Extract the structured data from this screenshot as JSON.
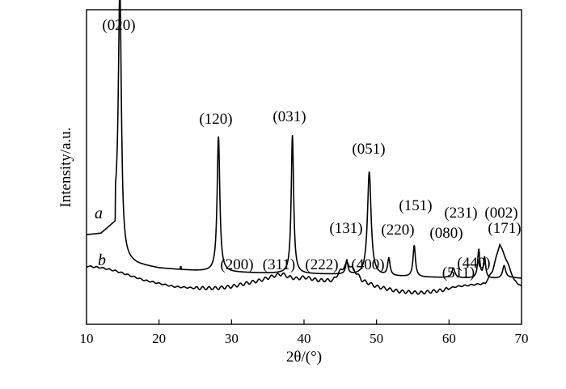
{
  "chart_data": {
    "type": "line",
    "xlabel": "2θ/(°)",
    "ylabel": "Intensity/a.u.",
    "xlim": [
      10,
      70
    ],
    "x_ticks": [
      "10",
      "20",
      "30",
      "40",
      "50",
      "60",
      "70"
    ],
    "y_ticks_shown": false,
    "grid": false,
    "legend": "none",
    "series": [
      {
        "curve_label": "a",
        "color": "#000000",
        "baseline": 0.285,
        "points": [
          [
            10,
            0.285
          ],
          [
            12,
            0.29
          ],
          [
            13,
            0.31
          ],
          [
            14,
            0.33
          ],
          [
            15,
            0.205
          ],
          [
            17,
            0.19
          ],
          [
            20,
            0.178
          ],
          [
            25,
            0.17
          ],
          [
            30,
            0.165
          ],
          [
            35,
            0.162
          ],
          [
            40,
            0.16
          ],
          [
            45,
            0.158
          ],
          [
            50,
            0.154
          ],
          [
            55,
            0.15
          ],
          [
            60,
            0.148
          ],
          [
            65,
            0.145
          ],
          [
            67,
            0.145
          ],
          [
            68.5,
            0.148
          ],
          [
            70,
            0.146
          ]
        ],
        "peaks": [
          {
            "label": "(020)",
            "x": 14.6,
            "height": 0.82
          },
          {
            "label": "(120)",
            "x": 28.2,
            "height": 0.43
          },
          {
            "label": "(031)",
            "x": 38.4,
            "height": 0.44
          },
          {
            "label": "(131)",
            "x": 45.9,
            "height": 0.045
          },
          {
            "label": "(051)",
            "x": 49.0,
            "height": 0.33
          },
          {
            "label": "(220)",
            "x": 51.7,
            "height": 0.055
          },
          {
            "label": "(151)",
            "x": 55.2,
            "height": 0.1
          },
          {
            "label": "(080)",
            "x": 60.6,
            "height": 0.03
          },
          {
            "label": "(231)",
            "x": 64.1,
            "height": 0.09
          },
          {
            "label": "(002)",
            "x": 64.9,
            "height": 0.065
          },
          {
            "label": "(171)",
            "x": 67.6,
            "height": 0.04
          }
        ]
      },
      {
        "curve_label": "b",
        "color": "#000000",
        "points": [
          [
            10,
            0.185
          ],
          [
            12,
            0.18
          ],
          [
            14,
            0.17
          ],
          [
            16,
            0.155
          ],
          [
            18,
            0.14
          ],
          [
            20,
            0.13
          ],
          [
            22,
            0.12
          ],
          [
            25,
            0.115
          ],
          [
            28,
            0.115
          ],
          [
            30,
            0.12
          ],
          [
            32,
            0.13
          ],
          [
            34,
            0.14
          ],
          [
            36,
            0.155
          ],
          [
            37,
            0.16
          ],
          [
            38,
            0.15
          ],
          [
            39,
            0.145
          ],
          [
            40,
            0.15
          ],
          [
            42,
            0.14
          ],
          [
            44,
            0.14
          ],
          [
            45,
            0.17
          ],
          [
            46,
            0.195
          ],
          [
            47,
            0.17
          ],
          [
            48,
            0.14
          ],
          [
            50,
            0.12
          ],
          [
            53,
            0.105
          ],
          [
            56,
            0.1
          ],
          [
            59,
            0.108
          ],
          [
            61,
            0.12
          ],
          [
            63,
            0.125
          ],
          [
            65,
            0.13
          ],
          [
            66,
            0.17
          ],
          [
            67,
            0.255
          ],
          [
            68,
            0.2
          ],
          [
            69,
            0.14
          ],
          [
            70,
            0.12
          ]
        ],
        "peaks": [
          {
            "label": "(200)",
            "x": 32.8
          },
          {
            "label": "(311)",
            "x": 36.8
          },
          {
            "label": "(222)",
            "x": 39.6
          },
          {
            "label": "(400)",
            "x": 46.5
          },
          {
            "label": "(511)",
            "x": 61.0
          },
          {
            "label": "(440)",
            "x": 67.0
          }
        ]
      }
    ]
  }
}
